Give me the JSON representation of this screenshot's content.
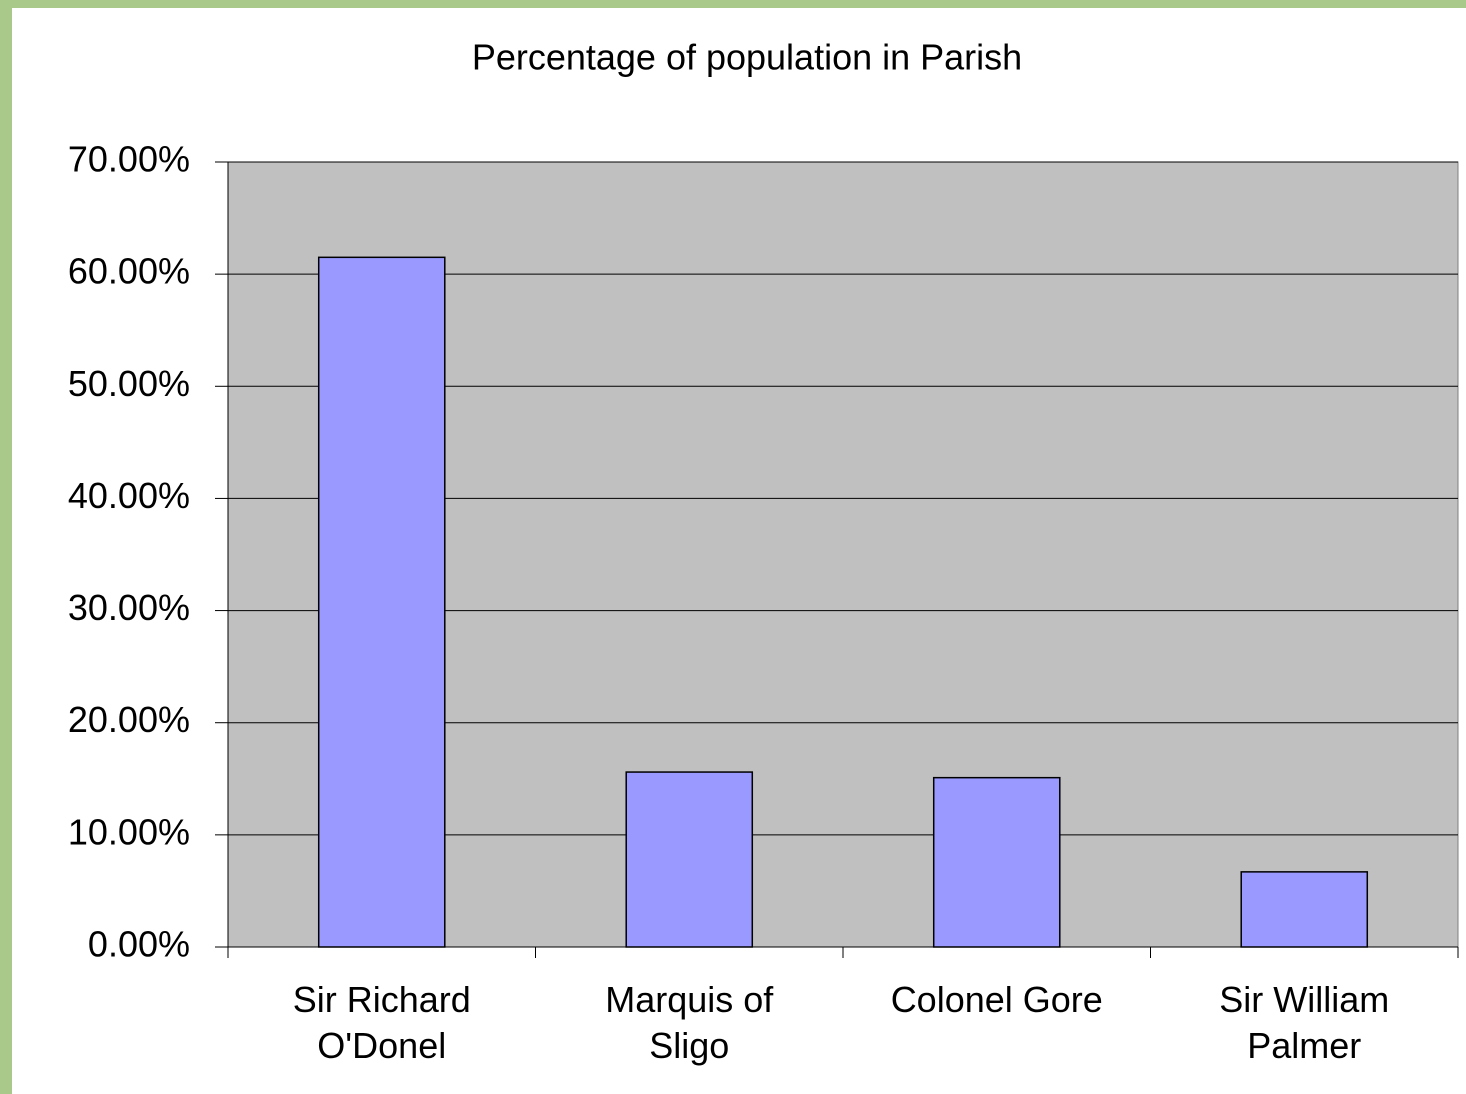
{
  "chart_data": {
    "type": "bar",
    "title": "Percentage of population in Parish",
    "categories": [
      "Sir Richard O'Donel",
      "Marquis of Sligo",
      "Colonel Gore",
      "Sir William Palmer"
    ],
    "values": [
      61.5,
      15.6,
      15.1,
      6.7
    ],
    "color": "#9999ff",
    "ylim": [
      0,
      70
    ],
    "yticks": [
      {
        "value": 0,
        "label": "0.00%"
      },
      {
        "value": 10,
        "label": "10.00%"
      },
      {
        "value": 20,
        "label": "20.00%"
      },
      {
        "value": 30,
        "label": "30.00%"
      },
      {
        "value": 40,
        "label": "40.00%"
      },
      {
        "value": 50,
        "label": "50.00%"
      },
      {
        "value": 60,
        "label": "60.00%"
      },
      {
        "value": 70,
        "label": "70.00%"
      }
    ],
    "grid": true
  }
}
